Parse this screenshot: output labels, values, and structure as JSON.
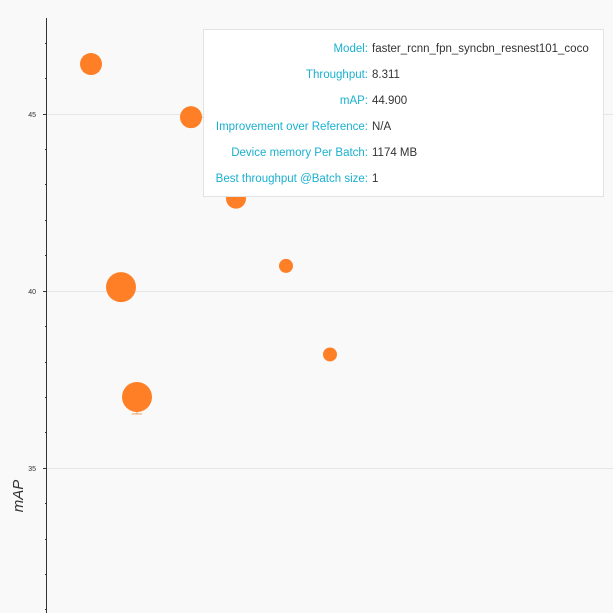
{
  "chart_data": {
    "type": "scatter",
    "ylabel": "mAP",
    "ylim": [
      30.9,
      47.7
    ],
    "yticks": [
      35,
      40,
      45
    ],
    "grid": true,
    "colors": {
      "point": "#ff7f27",
      "grid": "#e6e6e6",
      "axis": "#333333",
      "error_bar": "#f0a060"
    },
    "points": [
      {
        "size": 11,
        "y": 46.4
      },
      {
        "size": 11,
        "y": 44.9
      },
      {
        "size": 10,
        "y": 42.6
      },
      {
        "size": 7,
        "y": 40.7
      },
      {
        "size": 15,
        "y": 40.1
      },
      {
        "size": 7,
        "y": 38.2
      },
      {
        "size": 15,
        "y": 37.0
      }
    ]
  },
  "tooltip": {
    "rows": [
      {
        "key": "Model:",
        "value": "faster_rcnn_fpn_syncbn_resnest101_coco"
      },
      {
        "key": "Throughput:",
        "value": "8.311"
      },
      {
        "key": "mAP:",
        "value": "44.900"
      },
      {
        "key": "Improvement over Reference:",
        "value": "N/A"
      },
      {
        "key": "Device memory Per Batch:",
        "value": "1174 MB"
      },
      {
        "key": "Best throughput @Batch size:",
        "value": "1"
      }
    ]
  }
}
